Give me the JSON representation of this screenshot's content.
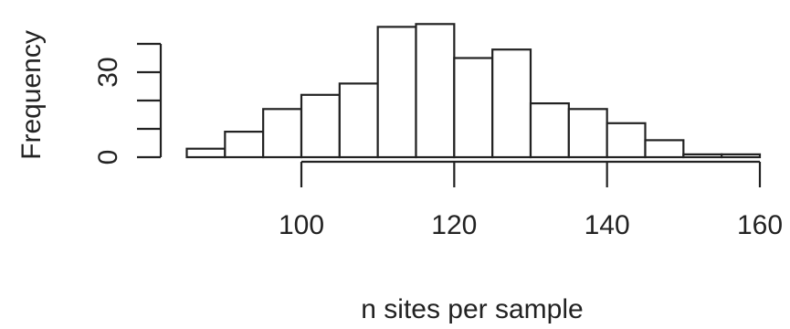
{
  "chart_data": {
    "type": "bar",
    "title": "",
    "xlabel": "n sites per sample",
    "ylabel": "Frequency",
    "bin_edges": [
      85,
      90,
      95,
      100,
      105,
      110,
      115,
      120,
      125,
      130,
      135,
      140,
      145,
      150,
      155,
      160
    ],
    "values": [
      3,
      9,
      17,
      22,
      26,
      46,
      47,
      35,
      38,
      19,
      17,
      12,
      6,
      1,
      1
    ],
    "xlim": [
      85,
      160
    ],
    "ylim": [
      0,
      50
    ],
    "x_ticks": [
      100,
      120,
      140,
      160
    ],
    "x_tick_labels": [
      "100",
      "120",
      "140",
      "160"
    ],
    "y_ticks": [
      0,
      10,
      20,
      30,
      40
    ],
    "y_tick_labels": [
      "0",
      "",
      "",
      "30",
      ""
    ],
    "grid": false,
    "legend": "none"
  }
}
